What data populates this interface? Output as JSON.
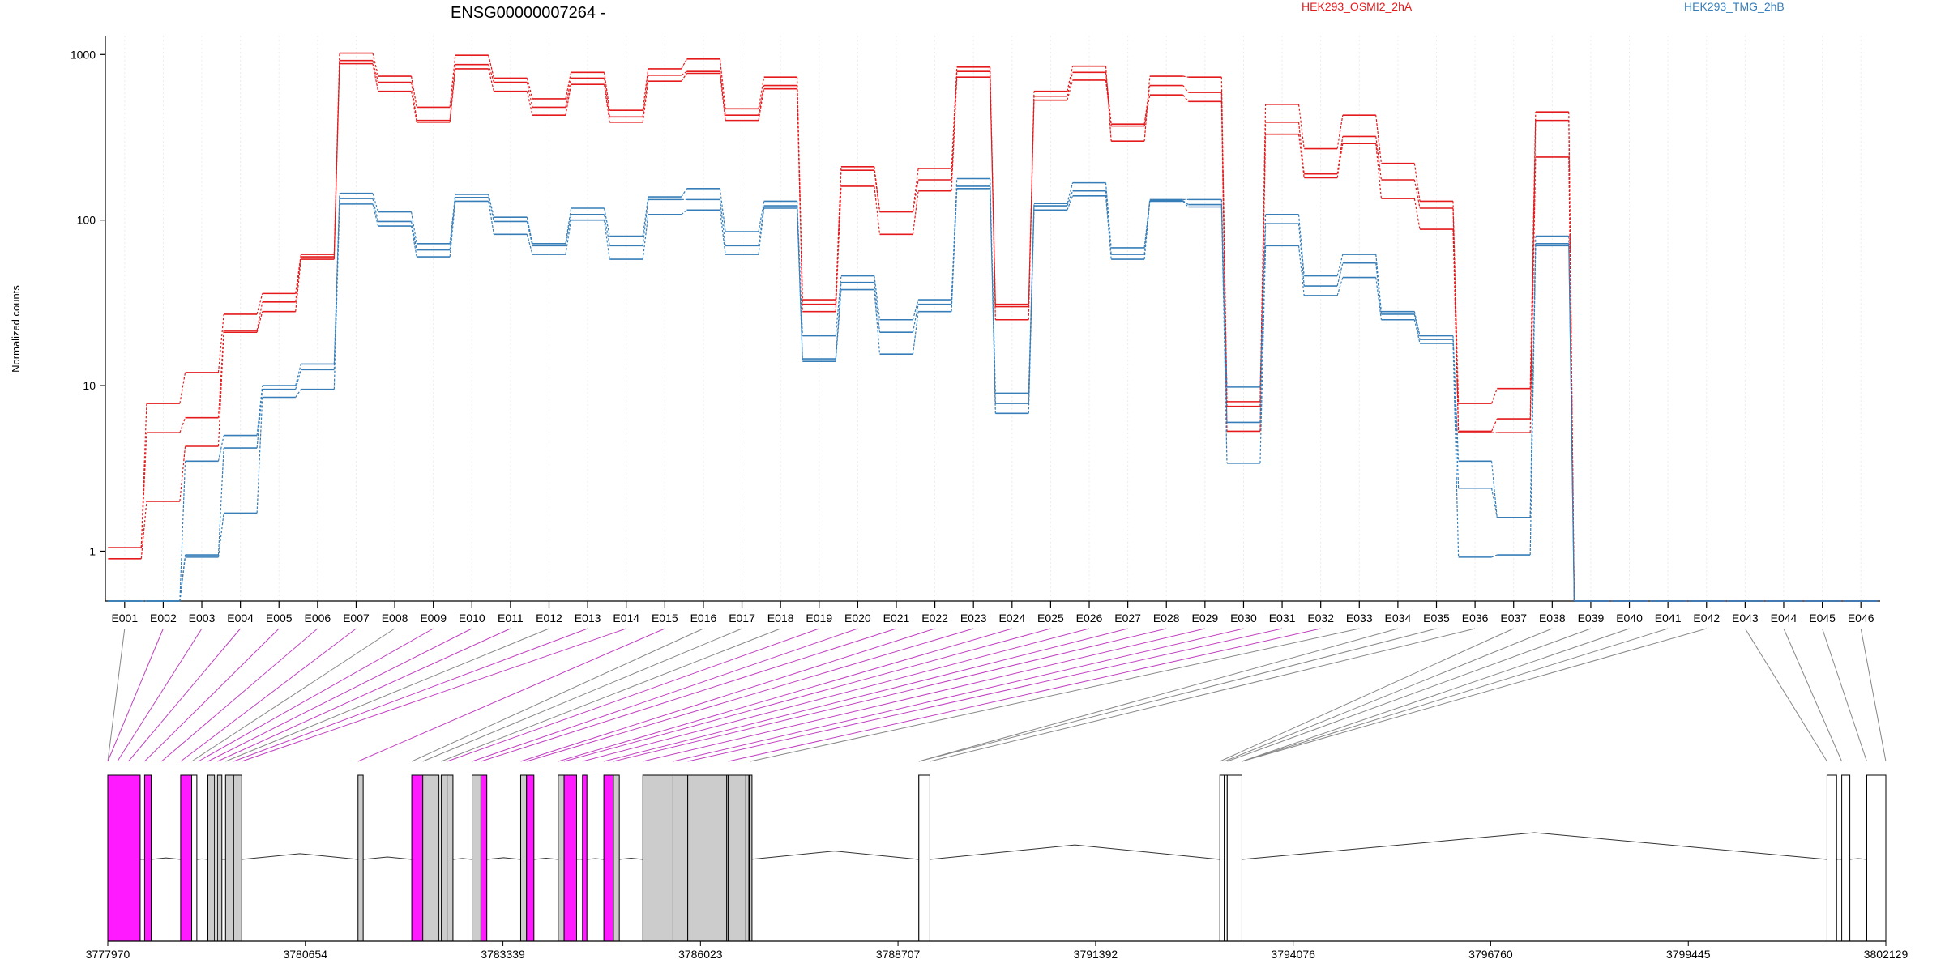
{
  "chart_data": {
    "type": "line",
    "title": "ENSG00000007264 -",
    "ylabel": "Normalized counts",
    "yscale": "log",
    "y_ticks": [
      1,
      10,
      100,
      1000
    ],
    "y_tick_labels": [
      "1",
      "10",
      "100",
      "1000"
    ],
    "ylim": [
      0.5,
      1300
    ],
    "legend": [
      {
        "name": "HEK293_OSMI2_2hA",
        "color": "#e41a1c"
      },
      {
        "name": "HEK293_TMG_2hB",
        "color": "#377eb8"
      }
    ],
    "exons": [
      "E001",
      "E002",
      "E003",
      "E004",
      "E005",
      "E006",
      "E007",
      "E008",
      "E009",
      "E010",
      "E011",
      "E012",
      "E013",
      "E014",
      "E015",
      "E016",
      "E017",
      "E018",
      "E019",
      "E020",
      "E021",
      "E022",
      "E023",
      "E024",
      "E025",
      "E026",
      "E027",
      "E028",
      "E029",
      "E030",
      "E031",
      "E032",
      "E033",
      "E034",
      "E035",
      "E036",
      "E037",
      "E038",
      "E039",
      "E040",
      "E041",
      "E042",
      "E043",
      "E044",
      "E045",
      "E046"
    ],
    "series": [
      {
        "name": "HEK293_OSMI2_2hA",
        "group": "OSMI2",
        "color": "#e41a1c",
        "style": "solid",
        "values": [
          0.9,
          2,
          4.3,
          21,
          28,
          58,
          880,
          600,
          390,
          820,
          600,
          430,
          660,
          390,
          690,
          770,
          400,
          620,
          28,
          160,
          82,
          150,
          730,
          30,
          530,
          700,
          370,
          570,
          520,
          5.3,
          330,
          180,
          290,
          135,
          88,
          5.2,
          5.2,
          240,
          0.5,
          0.5,
          0.5,
          0.5,
          0.5,
          0.5,
          0.5,
          0.5
        ]
      },
      {
        "name": "HEK293_OSMI2_2hA",
        "group": "OSMI2",
        "color": "#e41a1c",
        "style": "solid",
        "values": [
          1.05,
          5.2,
          6.4,
          21.5,
          32,
          60,
          920,
          680,
          400,
          870,
          680,
          480,
          720,
          420,
          750,
          790,
          430,
          650,
          31,
          200,
          112,
          175,
          790,
          31,
          560,
          780,
          380,
          650,
          590,
          7.5,
          390,
          190,
          320,
          175,
          118,
          5.3,
          6.3,
          400,
          0.5,
          0.5,
          0.5,
          0.5,
          0.5,
          0.5,
          0.5,
          0.5
        ]
      },
      {
        "name": "HEK293_OSMI2_2hA",
        "group": "OSMI2",
        "color": "#e41a1c",
        "style": "solid",
        "values": [
          1.05,
          7.8,
          12,
          27,
          36,
          62,
          1020,
          740,
          480,
          990,
          720,
          540,
          780,
          460,
          820,
          940,
          470,
          730,
          33,
          210,
          113,
          205,
          840,
          25,
          600,
          850,
          300,
          740,
          730,
          8,
          500,
          270,
          430,
          220,
          130,
          7.8,
          9.6,
          450,
          0.5,
          0.5,
          0.5,
          0.5,
          0.5,
          0.5,
          0.5,
          0.5
        ]
      },
      {
        "name": "HEK293_TMG_2hB",
        "group": "TMG",
        "color": "#377eb8",
        "style": "solid",
        "values": [
          0.5,
          0.5,
          0.92,
          1.7,
          8.5,
          9.5,
          125,
          92,
          60,
          130,
          82,
          62,
          100,
          58,
          108,
          115,
          62,
          118,
          14,
          38,
          15.5,
          28,
          155,
          6.8,
          115,
          140,
          58,
          130,
          120,
          3.4,
          70,
          35,
          45,
          25,
          18,
          0.92,
          0.95,
          70,
          0.5,
          0.5,
          0.5,
          0.5,
          0.5,
          0.5,
          0.5,
          0.5
        ]
      },
      {
        "name": "HEK293_TMG_2hB",
        "group": "TMG",
        "color": "#377eb8",
        "style": "solid",
        "values": [
          0.5,
          0.5,
          0.95,
          4.2,
          9.5,
          12.5,
          135,
          98,
          66,
          137,
          98,
          70,
          108,
          70,
          133,
          133,
          70,
          122,
          14.5,
          42,
          21,
          31,
          160,
          7.8,
          122,
          150,
          62,
          131,
          124,
          6,
          95,
          40,
          55,
          27,
          19,
          2.4,
          1.6,
          72,
          0.5,
          0.5,
          0.5,
          0.5,
          0.5,
          0.5,
          0.5,
          0.5
        ]
      },
      {
        "name": "HEK293_TMG_2hB",
        "group": "TMG",
        "color": "#377eb8",
        "style": "solid",
        "values": [
          0.5,
          0.5,
          3.5,
          5,
          10,
          13.5,
          145,
          112,
          72,
          143,
          104,
          72,
          118,
          80,
          138,
          155,
          85,
          130,
          20,
          46,
          25,
          33,
          178,
          9,
          126,
          168,
          68,
          133,
          133,
          9.8,
          108,
          46,
          62,
          28,
          20,
          3.5,
          1.6,
          80,
          0.5,
          0.5,
          0.5,
          0.5,
          0.5,
          0.5,
          0.5,
          0.5
        ]
      }
    ],
    "gene_model": {
      "x_ticks": [
        3777970,
        3780654,
        3783339,
        3786023,
        3788707,
        3791392,
        3794076,
        3796760,
        3799445,
        3802129
      ],
      "x_tick_labels": [
        "3777970",
        "3780654",
        "3783339",
        "3786023",
        "3788707",
        "3791392",
        "3794076",
        "3796760",
        "3799445",
        "3802129"
      ],
      "genome_range": [
        3777970,
        3802129
      ],
      "exon_highlight_color": "#ff1aff",
      "exon_shaded_color": "#cccccc",
      "exon_spans": [
        [
          3777970,
          3778410
        ],
        [
          3778470,
          3778560
        ],
        [
          3778960,
          3779110
        ],
        [
          3779110,
          3779180
        ],
        [
          3779330,
          3779420
        ],
        [
          3779460,
          3779520
        ],
        [
          3779570,
          3779680
        ],
        [
          3779680,
          3779790
        ],
        [
          3781370,
          3781440
        ],
        [
          3782100,
          3782250
        ],
        [
          3782250,
          3782470
        ],
        [
          3782500,
          3782580
        ],
        [
          3782580,
          3782660
        ],
        [
          3782920,
          3783040
        ],
        [
          3783040,
          3783120
        ],
        [
          3783580,
          3783660
        ],
        [
          3783660,
          3783760
        ],
        [
          3784090,
          3784170
        ],
        [
          3784170,
          3784340
        ],
        [
          3784420,
          3784480
        ],
        [
          3784710,
          3784840
        ],
        [
          3784840,
          3784920
        ],
        [
          3785240,
          3785650
        ],
        [
          3785650,
          3785850
        ],
        [
          3785850,
          3786380
        ],
        [
          3786380,
          3786400
        ],
        [
          3786400,
          3786640
        ],
        [
          3786640,
          3786680
        ],
        [
          3786690,
          3786700
        ],
        [
          3788990,
          3789140
        ],
        [
          3788990,
          3789140
        ],
        [
          3793080,
          3793140
        ],
        [
          3793140,
          3793180
        ],
        [
          3793180,
          3793380
        ],
        [
          3801330,
          3801460
        ],
        [
          3801530,
          3801640
        ],
        [
          3801870,
          3802129
        ]
      ]
    }
  }
}
